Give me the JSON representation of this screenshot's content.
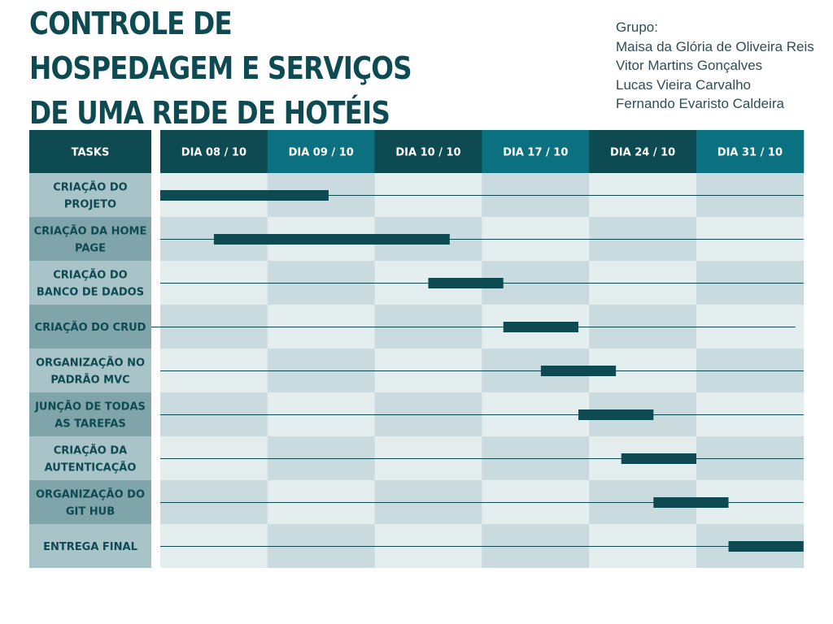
{
  "title_lines": [
    "CONTROLE DE",
    "HOSPEDAGEM E SERVIÇOS",
    "DE UMA REDE DE HOTÉIS"
  ],
  "group": {
    "label": "Grupo:",
    "members": [
      "Maisa da Glória de Oliveira Reis",
      "Vitor Martins Gonçalves",
      "Lucas Vieira Carvalho",
      "Fernando Evaristo Caldeira"
    ]
  },
  "colors": {
    "dark": "#0e4a52",
    "teal": "#0b7180",
    "label_light": "#a9c4c8",
    "label_dark": "#7fa5aa",
    "cell_light": "#e4eeef",
    "cell_dark": "#c9dbde",
    "bar": "#0e4a52"
  },
  "chart_data": {
    "type": "gantt",
    "header_label": "TASKS",
    "columns": [
      "DIA 08 /  10",
      "DIA 09 / 10",
      "DIA 10 / 10",
      "DIA 17 / 10",
      "DIA 24 / 10",
      "DIA 31 / 10"
    ],
    "tasks": [
      {
        "label": [
          "CRIAÇÃO DO",
          "PROJETO"
        ],
        "start": 0.0,
        "end": 1.57
      },
      {
        "label": [
          "CRIAÇÃO DA  HOME",
          "PAGE"
        ],
        "start": 0.5,
        "end": 2.7
      },
      {
        "label": [
          "CRIAÇÃO DO",
          "BANCO DE DADOS"
        ],
        "start": 2.5,
        "end": 3.2
      },
      {
        "label": [
          "CRIAÇÃO DO CRUD"
        ],
        "start": 3.2,
        "end": 3.9
      },
      {
        "label": [
          "ORGANIZAÇÃO NO",
          "PADRÃO MVC"
        ],
        "start": 3.55,
        "end": 4.25
      },
      {
        "label": [
          "JUNÇÃO DE TODAS",
          "AS TAREFAS"
        ],
        "start": 3.9,
        "end": 4.6
      },
      {
        "label": [
          "CRIAÇÃO DA",
          "AUTENTICAÇÃO"
        ],
        "start": 4.3,
        "end": 5.0
      },
      {
        "label": [
          "ORGANIZAÇÃO DO",
          "GIT HUB"
        ],
        "start": 4.6,
        "end": 5.3
      },
      {
        "label": [
          "ENTREGA FINAL"
        ],
        "start": 5.3,
        "end": 6.0
      }
    ]
  }
}
